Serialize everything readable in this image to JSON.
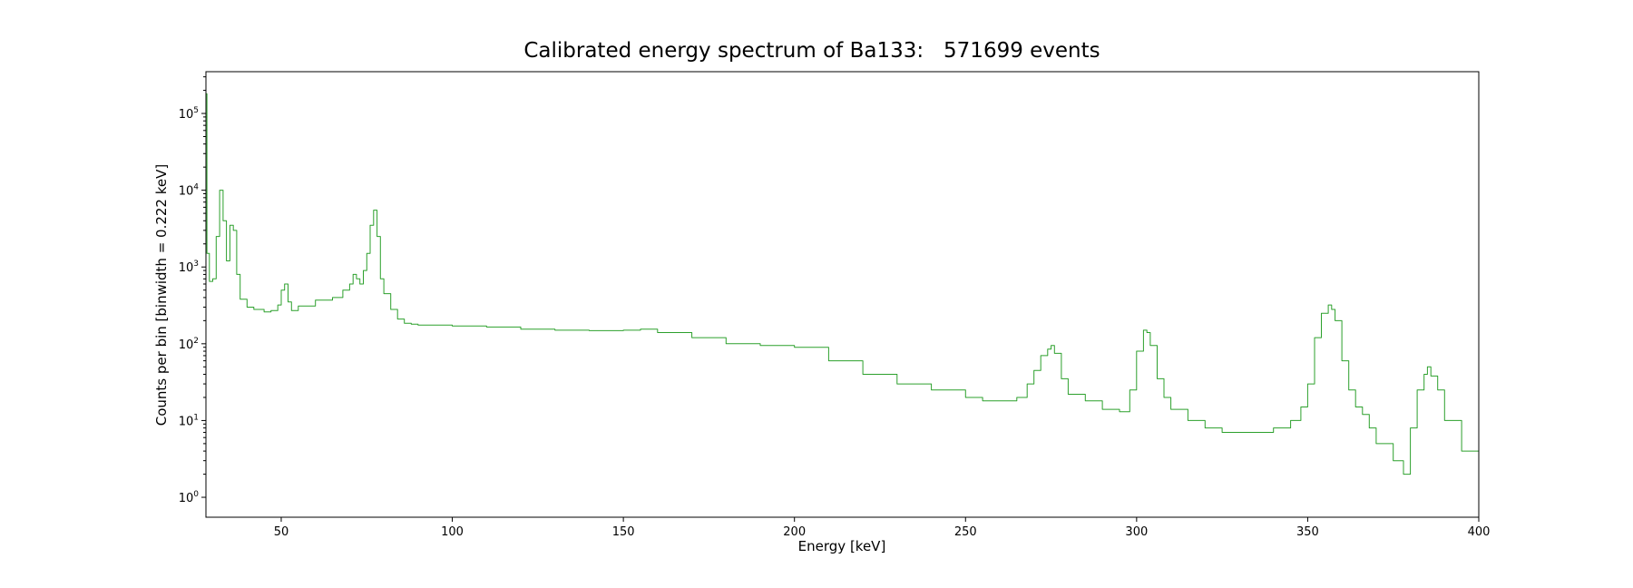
{
  "chart_data": {
    "type": "line",
    "title": "Calibrated energy spectrum of Ba133:   571699 events",
    "xlabel": "Energy [keV]",
    "ylabel": "Counts per bin [binwidth = 0.222 keV]",
    "xlim": [
      28,
      400
    ],
    "ylim": [
      0.55,
      350000
    ],
    "yscale": "log",
    "grid": false,
    "color": "#2ca02c",
    "x_ticks": [
      50,
      100,
      150,
      200,
      250,
      300,
      350,
      400
    ],
    "y_ticks": [
      {
        "value": 1,
        "base": "10",
        "exp": "0"
      },
      {
        "value": 10,
        "base": "10",
        "exp": "1"
      },
      {
        "value": 100,
        "base": "10",
        "exp": "2"
      },
      {
        "value": 1000,
        "base": "10",
        "exp": "3"
      },
      {
        "value": 10000,
        "base": "10",
        "exp": "4"
      },
      {
        "value": 100000,
        "base": "10",
        "exp": "5"
      }
    ],
    "series": [
      {
        "x": [
          28,
          28.3,
          29,
          30,
          31,
          32,
          33,
          34,
          35,
          36,
          37,
          38,
          40,
          42,
          45,
          47,
          49,
          50,
          51,
          52,
          53,
          55,
          60,
          65,
          68,
          70,
          71,
          72,
          73,
          74,
          75,
          76,
          77,
          78,
          79,
          80,
          82,
          84,
          86,
          88,
          90,
          100,
          110,
          120,
          130,
          140,
          150,
          155,
          160,
          170,
          180,
          190,
          195,
          200,
          210,
          220,
          230,
          240,
          250,
          255,
          260,
          265,
          268,
          270,
          272,
          274,
          275,
          276,
          278,
          280,
          285,
          290,
          295,
          298,
          300,
          302,
          303,
          304,
          306,
          308,
          310,
          315,
          320,
          325,
          330,
          340,
          345,
          348,
          350,
          352,
          354,
          356,
          357,
          358,
          360,
          362,
          364,
          366,
          368,
          370,
          375,
          378,
          380,
          382,
          384,
          385,
          386,
          388,
          390,
          395,
          400
        ],
        "y": [
          180000,
          1500,
          650,
          700,
          2500,
          10000,
          4000,
          1200,
          3500,
          3000,
          800,
          380,
          300,
          280,
          260,
          270,
          320,
          500,
          600,
          350,
          270,
          310,
          370,
          400,
          500,
          600,
          800,
          700,
          600,
          900,
          1500,
          3500,
          5500,
          2500,
          700,
          450,
          280,
          210,
          185,
          180,
          175,
          170,
          165,
          155,
          150,
          148,
          150,
          155,
          140,
          120,
          100,
          95,
          95,
          90,
          60,
          40,
          30,
          25,
          20,
          18,
          18,
          20,
          30,
          45,
          70,
          85,
          95,
          75,
          35,
          22,
          18,
          14,
          13,
          25,
          80,
          150,
          140,
          95,
          35,
          20,
          14,
          10,
          8,
          7,
          7,
          8,
          10,
          15,
          30,
          120,
          250,
          320,
          280,
          200,
          60,
          25,
          15,
          12,
          8,
          5,
          3,
          2,
          8,
          25,
          40,
          50,
          38,
          25,
          10,
          4,
          2
        ]
      }
    ]
  }
}
